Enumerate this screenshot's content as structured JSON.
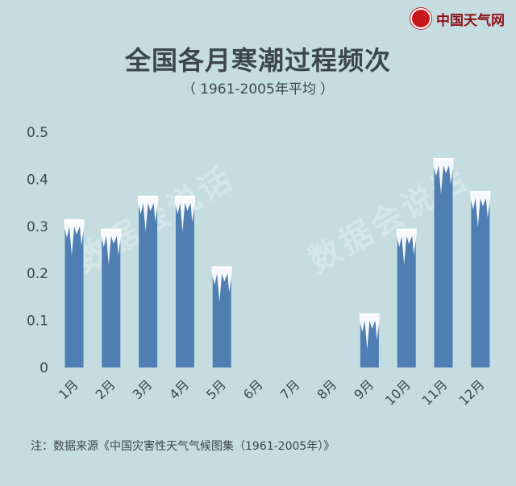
{
  "brand": {
    "name": "中国天气网",
    "seal": "中国天气"
  },
  "watermark": "数据会说话",
  "note": "注：数据来源《中国灾害性天气气候图集（1961-2005年）》",
  "colors": {
    "background": "#c5dde0",
    "bar": "#4f7fb2",
    "ice": "#ffffff",
    "text": "#3d4650"
  },
  "chart_data": {
    "type": "bar",
    "title": "全国各月寒潮过程频次",
    "subtitle": "（ 1961-2005年平均 ）",
    "categories": [
      "1月",
      "2月",
      "3月",
      "4月",
      "5月",
      "6月",
      "7月",
      "8月",
      "9月",
      "10月",
      "11月",
      "12月"
    ],
    "values": [
      0.31,
      0.29,
      0.36,
      0.36,
      0.21,
      0,
      0,
      0,
      0.11,
      0.29,
      0.44,
      0.37
    ],
    "yticks": [
      "0",
      "0.1",
      "0.2",
      "0.3",
      "0.4",
      "0.5"
    ],
    "ylim": [
      0,
      0.5
    ],
    "grid": false,
    "legend": "none"
  }
}
